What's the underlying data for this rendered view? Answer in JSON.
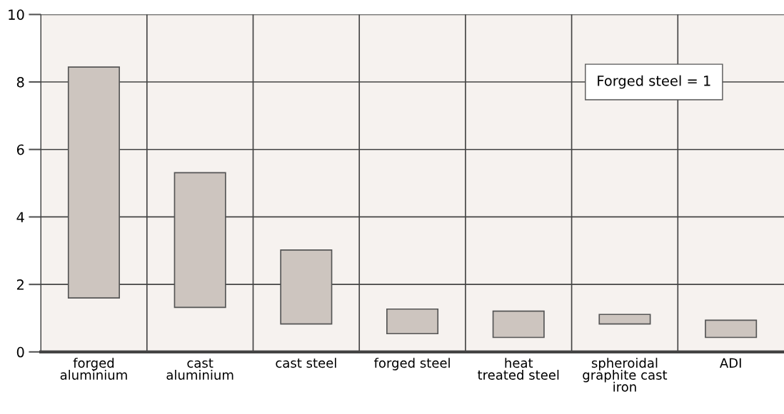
{
  "chart_data": {
    "type": "bar",
    "categories": [
      "forged\naluminium",
      "cast\naluminium",
      "cast steel",
      "forged steel",
      "heat\ntreated steel",
      "spheroidal\ngraphite cast\niron",
      "ADI"
    ],
    "base": [
      1.6,
      1.32,
      0.83,
      0.54,
      0.43,
      0.83,
      0.43
    ],
    "values": [
      6.84,
      3.99,
      2.19,
      0.73,
      0.78,
      0.28,
      0.51
    ],
    "color": "#cdc5bf",
    "ylim": [
      0,
      10
    ],
    "yticks": [
      0,
      2,
      4,
      6,
      8,
      10
    ],
    "grid": true,
    "annotations": [
      "Forged steel = 1"
    ]
  }
}
